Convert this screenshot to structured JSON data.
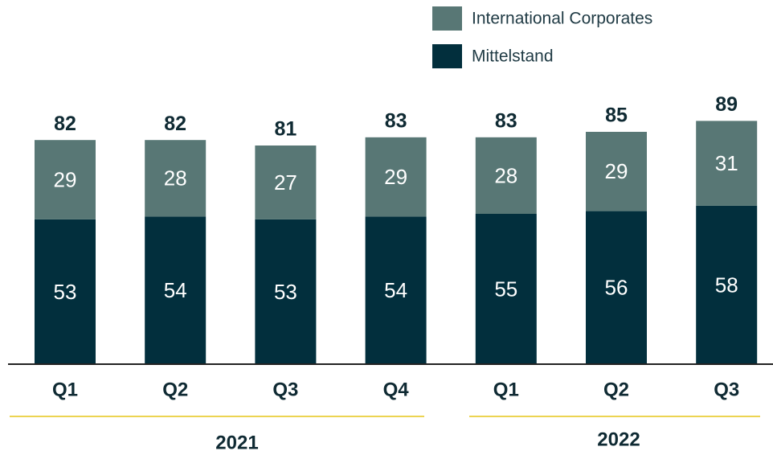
{
  "chart_data": {
    "type": "stacked_bar",
    "categories": [
      "Q1",
      "Q2",
      "Q3",
      "Q4",
      "Q1",
      "Q2",
      "Q3"
    ],
    "groups": [
      "2021",
      "2022"
    ],
    "series": [
      {
        "name": "Mittelstand",
        "color": "#022f3d",
        "values": [
          53,
          54,
          53,
          54,
          55,
          56,
          58
        ]
      },
      {
        "name": "International Corporates",
        "color": "#587775",
        "values": [
          29,
          28,
          27,
          29,
          28,
          29,
          31
        ]
      }
    ],
    "totals": [
      82,
      82,
      81,
      83,
      83,
      85,
      89
    ],
    "group_line_color": "#e6c619"
  }
}
